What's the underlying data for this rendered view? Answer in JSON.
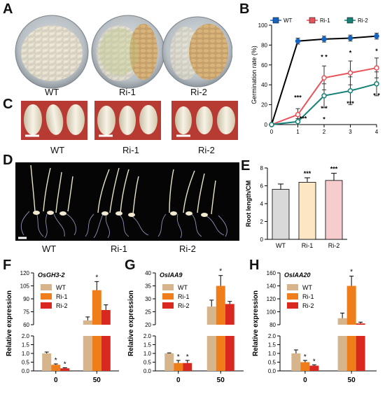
{
  "panels": {
    "A": {
      "letter": "A",
      "labels": [
        "WT",
        "Ri-1",
        "Ri-2"
      ]
    },
    "B": {
      "letter": "B"
    },
    "C": {
      "letter": "C",
      "labels": [
        "WT",
        "Ri-1",
        "Ri-2"
      ]
    },
    "D": {
      "letter": "D",
      "labels": [
        "WT",
        "Ri-1",
        "Ri-2"
      ]
    },
    "E": {
      "letter": "E"
    },
    "F": {
      "letter": "F"
    },
    "G": {
      "letter": "G"
    },
    "H": {
      "letter": "H"
    }
  },
  "chart_data": [
    {
      "id": "B",
      "type": "line",
      "ylabel": "Germination rate (%)",
      "xlabel": "",
      "x": [
        0,
        1,
        2,
        3,
        4
      ],
      "xlim": [
        0,
        4
      ],
      "ylim": [
        0,
        100
      ],
      "yticks": [
        0,
        20,
        40,
        60,
        80,
        100
      ],
      "series": [
        {
          "name": "WT",
          "color": "#1565c0",
          "values": [
            0,
            84,
            86,
            87,
            89
          ],
          "errors": [
            0,
            3,
            3,
            3,
            3
          ]
        },
        {
          "name": "Ri-1",
          "color": "#e8535b",
          "values": [
            0,
            10,
            47,
            52,
            57
          ],
          "errors": [
            0,
            6,
            12,
            12,
            10
          ]
        },
        {
          "name": "Ri-2",
          "color": "#148277",
          "values": [
            0,
            3,
            29,
            34,
            41
          ],
          "errors": [
            0,
            3,
            12,
            14,
            12
          ]
        }
      ],
      "annotations": [
        {
          "x": 1,
          "y": 25,
          "text": "***"
        },
        {
          "x": 1.2,
          "y": 4,
          "text": "***"
        },
        {
          "x": 2,
          "y": 66,
          "text": "* *"
        },
        {
          "x": 2,
          "y": 14,
          "text": "* *"
        },
        {
          "x": 2,
          "y": 3,
          "text": "*"
        },
        {
          "x": 3,
          "y": 70,
          "text": "*"
        },
        {
          "x": 3,
          "y": 19,
          "text": "***"
        },
        {
          "x": 4,
          "y": 72,
          "text": "*"
        },
        {
          "x": 4,
          "y": 27,
          "text": "* *"
        }
      ]
    },
    {
      "id": "E",
      "type": "bar",
      "ylabel": "Root length/CM",
      "categories": [
        "WT",
        "Ri-1",
        "Ri-2"
      ],
      "values": [
        5.6,
        6.4,
        6.6
      ],
      "errors": [
        0.6,
        0.5,
        0.8
      ],
      "colors": [
        "#d9d9d9",
        "#fde6c4",
        "#f6cccc"
      ],
      "ylim": [
        0,
        8
      ],
      "yticks": [
        0,
        2,
        4,
        6,
        8
      ],
      "annotations": [
        "",
        "***",
        "***"
      ]
    },
    {
      "id": "F",
      "type": "bar",
      "gene": "OsGH3-2",
      "ylabel": "Relative expression",
      "categories": [
        "0",
        "50"
      ],
      "series": [
        {
          "name": "WT",
          "color": "#d6b48c",
          "values": [
            1.0,
            65
          ],
          "errors": [
            0.08,
            4
          ]
        },
        {
          "name": "Ri-1",
          "color": "#ef7d1a",
          "values": [
            0.35,
            100
          ],
          "errors": [
            0.05,
            10
          ]
        },
        {
          "name": "Ri-2",
          "color": "#d8281f",
          "values": [
            0.15,
            77
          ],
          "errors": [
            0.03,
            6
          ]
        }
      ],
      "lower_ticks": [
        "0.0",
        "0.5",
        "1.0",
        "1.5",
        "2.0"
      ],
      "upper_ticks": [
        "60",
        "75",
        "90",
        "105",
        "120"
      ],
      "stars": [
        [
          "",
          "*",
          "*"
        ],
        [
          "",
          "*",
          ""
        ]
      ]
    },
    {
      "id": "G",
      "type": "bar",
      "gene": "OsIAA9",
      "ylabel": "Relative expression",
      "categories": [
        "0",
        "50"
      ],
      "series": [
        {
          "name": "WT",
          "color": "#d6b48c",
          "values": [
            1.0,
            27
          ],
          "errors": [
            0.03,
            2.5
          ]
        },
        {
          "name": "Ri-1",
          "color": "#ef7d1a",
          "values": [
            0.45,
            35
          ],
          "errors": [
            0.15,
            4
          ]
        },
        {
          "name": "Ri-2",
          "color": "#d8281f",
          "values": [
            0.45,
            28
          ],
          "errors": [
            0.15,
            1
          ]
        }
      ],
      "lower_ticks": [
        "0.0",
        "0.5",
        "1.0",
        "1.5",
        "2.0"
      ],
      "upper_ticks": [
        "20",
        "25",
        "30",
        "35",
        "40"
      ],
      "stars": [
        [
          "",
          "*",
          "*"
        ],
        [
          "",
          "*",
          ""
        ]
      ]
    },
    {
      "id": "H",
      "type": "bar",
      "gene": "OsIAA20",
      "ylabel": "Relative expression",
      "categories": [
        "0",
        "50"
      ],
      "series": [
        {
          "name": "WT",
          "color": "#d6b48c",
          "values": [
            1.0,
            90
          ],
          "errors": [
            0.2,
            8
          ]
        },
        {
          "name": "Ri-1",
          "color": "#ef7d1a",
          "values": [
            0.5,
            140
          ],
          "errors": [
            0.1,
            15
          ]
        },
        {
          "name": "Ri-2",
          "color": "#d8281f",
          "values": [
            0.3,
            82
          ],
          "errors": [
            0.05,
            2
          ]
        }
      ],
      "lower_ticks": [
        "0.0",
        "0.5",
        "1.0",
        "1.5",
        "2.0"
      ],
      "upper_ticks": [
        "80",
        "100",
        "120",
        "140",
        "160"
      ],
      "stars": [
        [
          "",
          "*",
          "*"
        ],
        [
          "",
          "*",
          ""
        ]
      ]
    }
  ]
}
